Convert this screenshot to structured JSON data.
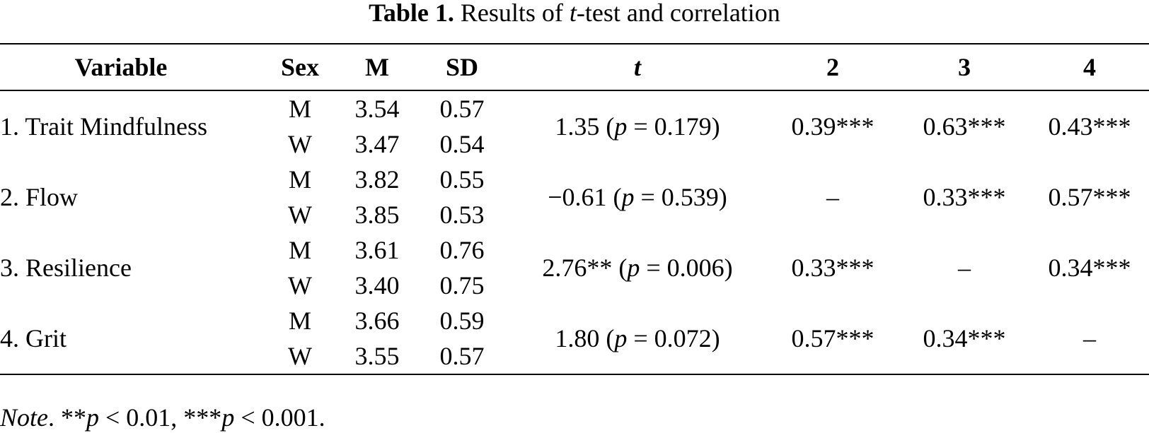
{
  "caption": {
    "label": "Table 1.",
    "text_before": "Results of ",
    "text_italic": "t",
    "text_after": "-test and correlation"
  },
  "headers": {
    "variable": "Variable",
    "sex": "Sex",
    "m": "M",
    "sd": "SD",
    "t": "t",
    "c2": "2",
    "c3": "3",
    "c4": "4"
  },
  "rows": [
    {
      "variable": "1. Trait Mindfulness",
      "sexes": [
        {
          "sex": "M",
          "m": "3.54",
          "sd": "0.57"
        },
        {
          "sex": "W",
          "m": "3.47",
          "sd": "0.54"
        }
      ],
      "t_value": "1.35",
      "t_open": " (",
      "t_p_label": "p",
      "t_p_rest": " = 0.179)",
      "c2": "0.39***",
      "c3": "0.63***",
      "c4": "0.43***"
    },
    {
      "variable": "2. Flow",
      "sexes": [
        {
          "sex": "M",
          "m": "3.82",
          "sd": "0.55"
        },
        {
          "sex": "W",
          "m": "3.85",
          "sd": "0.53"
        }
      ],
      "t_value": "−0.61",
      "t_open": " (",
      "t_p_label": "p",
      "t_p_rest": " = 0.539)",
      "c2": "–",
      "c3": "0.33***",
      "c4": "0.57***"
    },
    {
      "variable": "3. Resilience",
      "sexes": [
        {
          "sex": "M",
          "m": "3.61",
          "sd": "0.76"
        },
        {
          "sex": "W",
          "m": "3.40",
          "sd": "0.75"
        }
      ],
      "t_value": "2.76**",
      "t_open": " (",
      "t_p_label": "p",
      "t_p_rest": " = 0.006)",
      "c2": "0.33***",
      "c3": "–",
      "c4": "0.34***"
    },
    {
      "variable": "4. Grit",
      "sexes": [
        {
          "sex": "M",
          "m": "3.66",
          "sd": "0.59"
        },
        {
          "sex": "W",
          "m": "3.55",
          "sd": "0.57"
        }
      ],
      "t_value": "1.80",
      "t_open": " (",
      "t_p_label": "p",
      "t_p_rest": " = 0.072)",
      "c2": "0.57***",
      "c3": "0.34***",
      "c4": "–"
    }
  ],
  "note": {
    "label": "Note",
    "after_label": ". **",
    "p1": "p",
    "mid": " < 0.01, ***",
    "p2": "p",
    "end": " < 0.001."
  }
}
